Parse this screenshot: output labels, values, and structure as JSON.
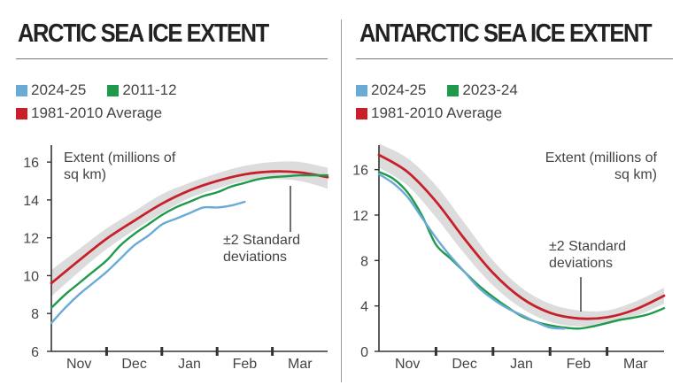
{
  "colors": {
    "blue": "#6aaad6",
    "green": "#1f9a4a",
    "red": "#c8202a",
    "band": "#d6d6d6",
    "axis": "#333333"
  },
  "chart_data": [
    {
      "type": "line",
      "title": "ARCTIC SEA ICE EXTENT",
      "ylim": [
        6,
        16.8
      ],
      "yticks": [
        6,
        8,
        10,
        12,
        14,
        16
      ],
      "x_range": [
        0,
        5
      ],
      "months": [
        "Nov",
        "Dec",
        "Jan",
        "Feb",
        "Mar"
      ],
      "ylabel": [
        "Extent (millions of",
        "sq km)"
      ],
      "annotation": [
        "±2 Standard",
        "deviations"
      ],
      "legend": [
        {
          "name": "2024-25",
          "color": "blue"
        },
        {
          "name": "2011-12",
          "color": "green"
        },
        {
          "name": "1981-2010 Average",
          "color": "red"
        }
      ],
      "band": {
        "x": [
          0,
          0.5,
          1,
          1.5,
          2,
          2.5,
          3,
          3.5,
          4,
          4.5,
          5
        ],
        "upper": [
          10.3,
          11.4,
          12.5,
          13.4,
          14.3,
          14.9,
          15.4,
          15.8,
          16.0,
          16.0,
          15.7
        ],
        "lower": [
          8.9,
          10.2,
          11.4,
          12.4,
          13.3,
          14.1,
          14.6,
          15.0,
          15.1,
          15.0,
          14.6
        ]
      },
      "series": [
        {
          "name": "1981-2010 Average",
          "color": "red",
          "x": [
            0,
            0.5,
            1,
            1.5,
            2,
            2.5,
            3,
            3.5,
            4,
            4.5,
            5
          ],
          "values": [
            9.6,
            10.8,
            11.95,
            12.9,
            13.8,
            14.5,
            15.0,
            15.35,
            15.5,
            15.45,
            15.2
          ]
        },
        {
          "name": "2011-12",
          "color": "green",
          "x": [
            0,
            0.25,
            0.5,
            0.75,
            1,
            1.25,
            1.5,
            1.75,
            2,
            2.25,
            2.5,
            2.75,
            3,
            3.25,
            3.5,
            3.75,
            4,
            4.25,
            4.5,
            4.75,
            5
          ],
          "values": [
            8.3,
            9.0,
            9.6,
            10.2,
            10.8,
            11.6,
            12.2,
            12.7,
            13.2,
            13.6,
            13.9,
            14.2,
            14.4,
            14.7,
            14.9,
            15.1,
            15.2,
            15.25,
            15.3,
            15.3,
            15.3
          ]
        },
        {
          "name": "2024-25",
          "color": "blue",
          "x": [
            0,
            0.25,
            0.5,
            0.75,
            1,
            1.25,
            1.5,
            1.75,
            2,
            2.25,
            2.5,
            2.75,
            3,
            3.25,
            3.5
          ],
          "values": [
            7.5,
            8.3,
            9.0,
            9.6,
            10.2,
            10.9,
            11.6,
            12.1,
            12.7,
            13.0,
            13.3,
            13.6,
            13.6,
            13.7,
            13.9
          ]
        }
      ]
    },
    {
      "type": "line",
      "title": "ANTARCTIC SEA ICE EXTENT",
      "ylim": [
        0,
        18
      ],
      "yticks": [
        0,
        4,
        8,
        12,
        16
      ],
      "x_range": [
        0,
        5
      ],
      "months": [
        "Nov",
        "Dec",
        "Jan",
        "Feb",
        "Mar"
      ],
      "ylabel": [
        "Extent (millions of",
        "sq km)"
      ],
      "annotation": [
        "±2 Standard",
        "deviations"
      ],
      "legend": [
        {
          "name": "2024-25",
          "color": "blue"
        },
        {
          "name": "2023-24",
          "color": "green"
        },
        {
          "name": "1981-2010 Average",
          "color": "red"
        }
      ],
      "band": {
        "x": [
          0,
          0.5,
          1,
          1.5,
          2,
          2.5,
          3,
          3.5,
          4,
          4.5,
          5
        ],
        "upper": [
          18.3,
          17.0,
          14.6,
          11.3,
          8.0,
          5.6,
          4.2,
          3.6,
          3.6,
          4.4,
          5.6
        ],
        "lower": [
          16.2,
          14.6,
          11.8,
          8.6,
          5.8,
          3.8,
          2.6,
          2.2,
          2.4,
          3.1,
          4.2
        ]
      },
      "series": [
        {
          "name": "1981-2010 Average",
          "color": "red",
          "x": [
            0,
            0.5,
            1,
            1.5,
            2,
            2.5,
            3,
            3.5,
            4,
            4.5,
            5
          ],
          "values": [
            17.3,
            15.8,
            13.2,
            9.9,
            6.9,
            4.7,
            3.4,
            2.9,
            3.0,
            3.7,
            4.9
          ]
        },
        {
          "name": "2023-24",
          "color": "green",
          "x": [
            0,
            0.25,
            0.5,
            0.75,
            1,
            1.25,
            1.5,
            1.75,
            2,
            2.25,
            2.5,
            2.75,
            3,
            3.25,
            3.5,
            3.75,
            4,
            4.25,
            4.5,
            4.75,
            5
          ],
          "values": [
            15.8,
            15.2,
            14.0,
            12.0,
            9.4,
            8.2,
            7.0,
            5.8,
            4.8,
            3.9,
            3.1,
            2.6,
            2.3,
            2.1,
            2.0,
            2.2,
            2.5,
            2.8,
            3.0,
            3.3,
            3.8
          ]
        },
        {
          "name": "2024-25",
          "color": "blue",
          "x": [
            0,
            0.25,
            0.5,
            0.75,
            1,
            1.25,
            1.5,
            1.75,
            2,
            2.25,
            2.5,
            2.75,
            3,
            3.25
          ],
          "values": [
            15.6,
            14.8,
            13.6,
            11.8,
            10.0,
            8.4,
            7.0,
            5.6,
            4.6,
            3.8,
            3.2,
            2.6,
            2.1,
            2.0
          ]
        }
      ]
    }
  ]
}
